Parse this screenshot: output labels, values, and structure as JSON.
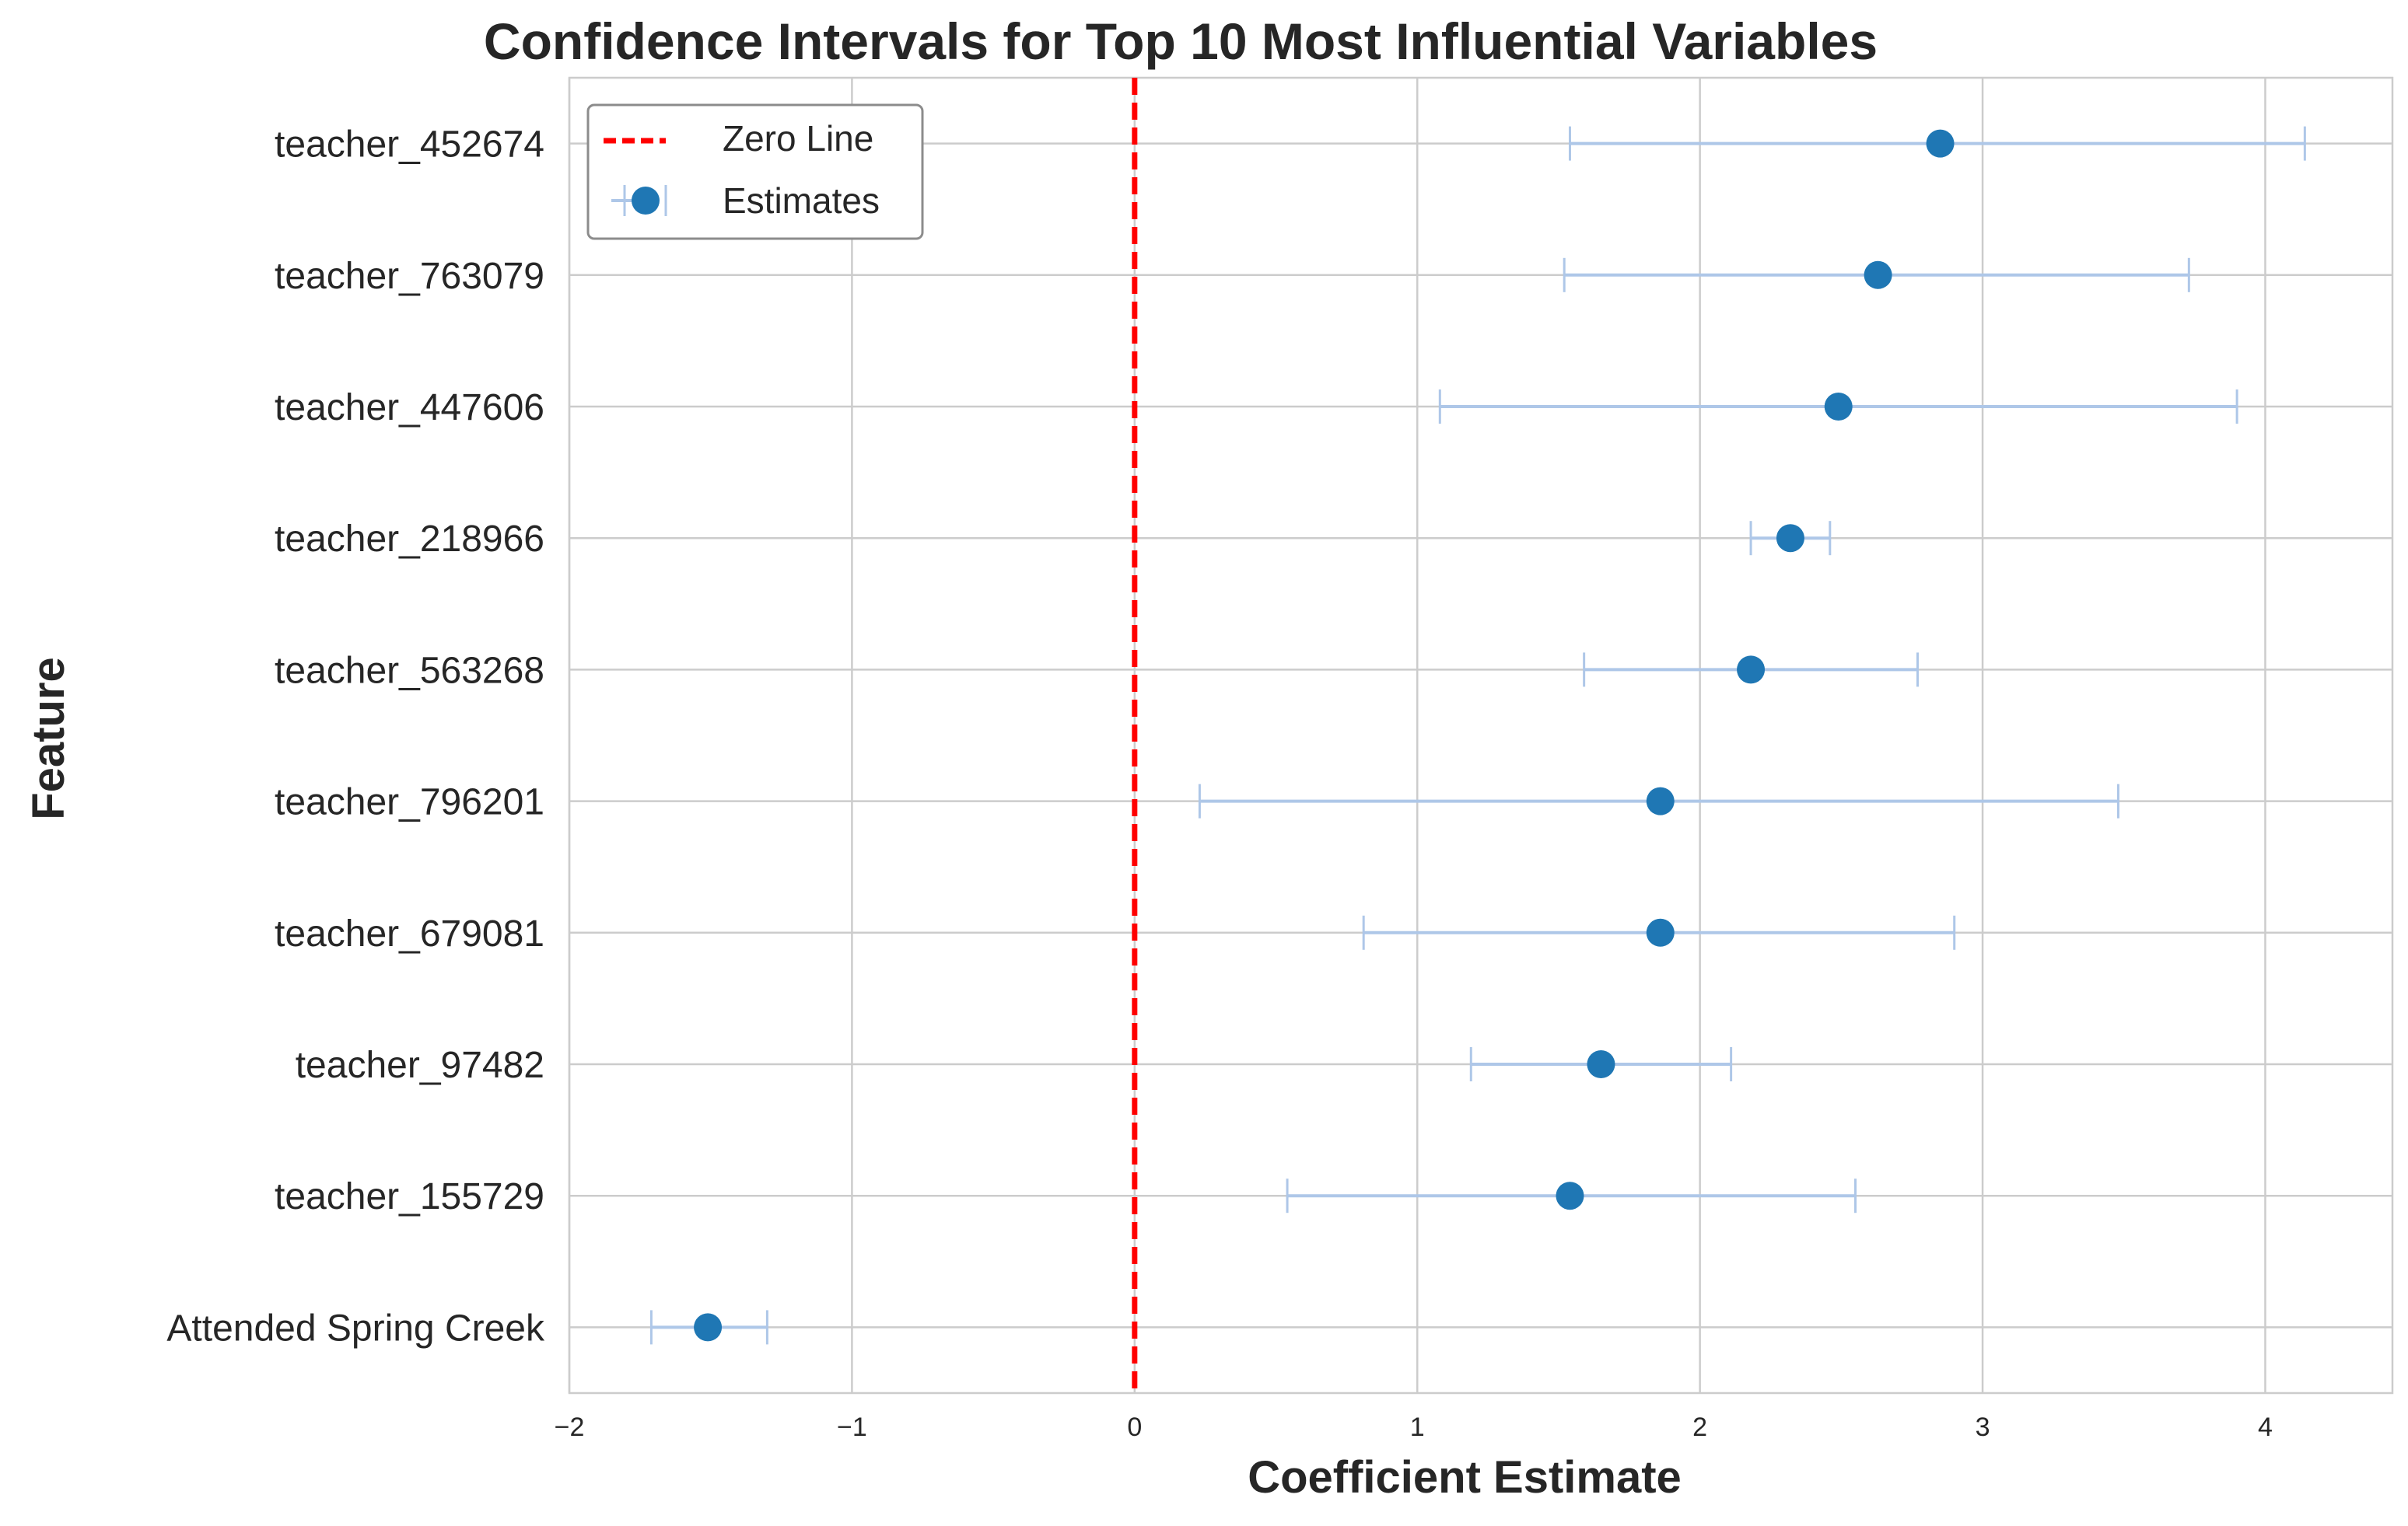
{
  "chart_data": {
    "type": "scatter",
    "title": "Confidence Intervals for Top 10 Most Influential Variables",
    "xlabel": "Coefficient Estimate",
    "ylabel": "Feature",
    "xlim": [
      -2,
      4.45
    ],
    "xticks": [
      {
        "value": -2,
        "label": "−2"
      },
      {
        "value": -1,
        "label": "−1"
      },
      {
        "value": 0,
        "label": "0"
      },
      {
        "value": 1,
        "label": "1"
      },
      {
        "value": 2,
        "label": "2"
      },
      {
        "value": 3,
        "label": "3"
      },
      {
        "value": 4,
        "label": "4"
      }
    ],
    "grid": true,
    "legend_position": "top-left",
    "reference_line": {
      "x": 0,
      "name": "Zero Line",
      "color": "#ff0000",
      "style": "dashed"
    },
    "series": [
      {
        "name": "Estimates",
        "marker_color": "#1f77b4",
        "errorbar_color": "#aec7e8",
        "points": [
          {
            "feature": "teacher_452674",
            "estimate": 2.85,
            "lower": 1.54,
            "upper": 4.14
          },
          {
            "feature": "teacher_763079",
            "estimate": 2.63,
            "lower": 1.52,
            "upper": 3.73
          },
          {
            "feature": "teacher_447606",
            "estimate": 2.49,
            "lower": 1.08,
            "upper": 3.9
          },
          {
            "feature": "teacher_218966",
            "estimate": 2.32,
            "lower": 2.18,
            "upper": 2.46
          },
          {
            "feature": "teacher_563268",
            "estimate": 2.18,
            "lower": 1.59,
            "upper": 2.77
          },
          {
            "feature": "teacher_796201",
            "estimate": 1.86,
            "lower": 0.23,
            "upper": 3.48
          },
          {
            "feature": "teacher_679081",
            "estimate": 1.86,
            "lower": 0.81,
            "upper": 2.9
          },
          {
            "feature": "teacher_97482",
            "estimate": 1.65,
            "lower": 1.19,
            "upper": 2.11
          },
          {
            "feature": "teacher_155729",
            "estimate": 1.54,
            "lower": 0.54,
            "upper": 2.55
          },
          {
            "feature": "Attended Spring Creek",
            "estimate": -1.51,
            "lower": -1.71,
            "upper": -1.3
          }
        ]
      }
    ]
  }
}
